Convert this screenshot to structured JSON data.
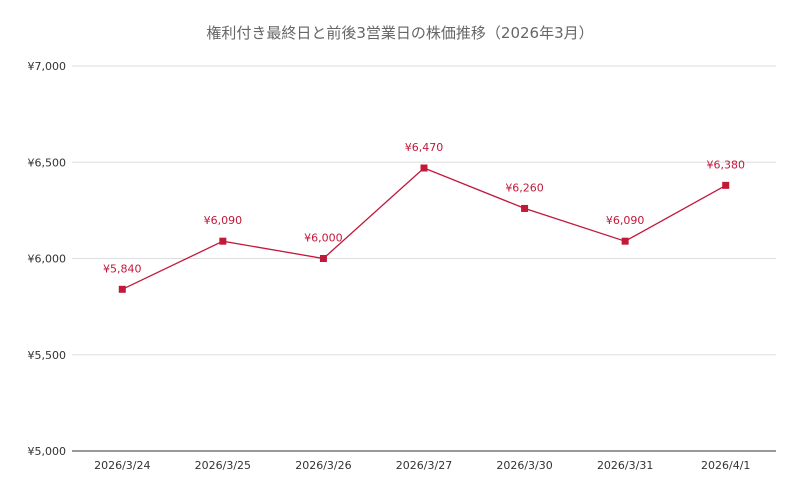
{
  "chart_data": {
    "type": "line",
    "title": "権利付き最終日と前後3営業日の株価推移（2026年3月）",
    "xlabel": "",
    "ylabel": "",
    "categories": [
      "2026/3/24",
      "2026/3/25",
      "2026/3/26",
      "2026/3/27",
      "2026/3/30",
      "2026/3/31",
      "2026/4/1"
    ],
    "series": [
      {
        "values": [
          5840,
          6090,
          6000,
          6470,
          6260,
          6090,
          6380
        ],
        "data_labels": [
          "¥5,840",
          "¥6,090",
          "¥6,000",
          "¥6,470",
          "¥6,260",
          "¥6,090",
          "¥6,380"
        ]
      }
    ],
    "ylim": [
      5000,
      7000
    ],
    "yticks": [
      5000,
      5500,
      6000,
      6500,
      7000
    ],
    "ytick_labels": [
      "¥5,000",
      "¥5,500",
      "¥6,000",
      "¥6,500",
      "¥7,000"
    ],
    "grid": true,
    "legend": "none",
    "colors": {
      "series": "#c2183a",
      "grid": "#dddddd",
      "title": "#666666"
    }
  }
}
